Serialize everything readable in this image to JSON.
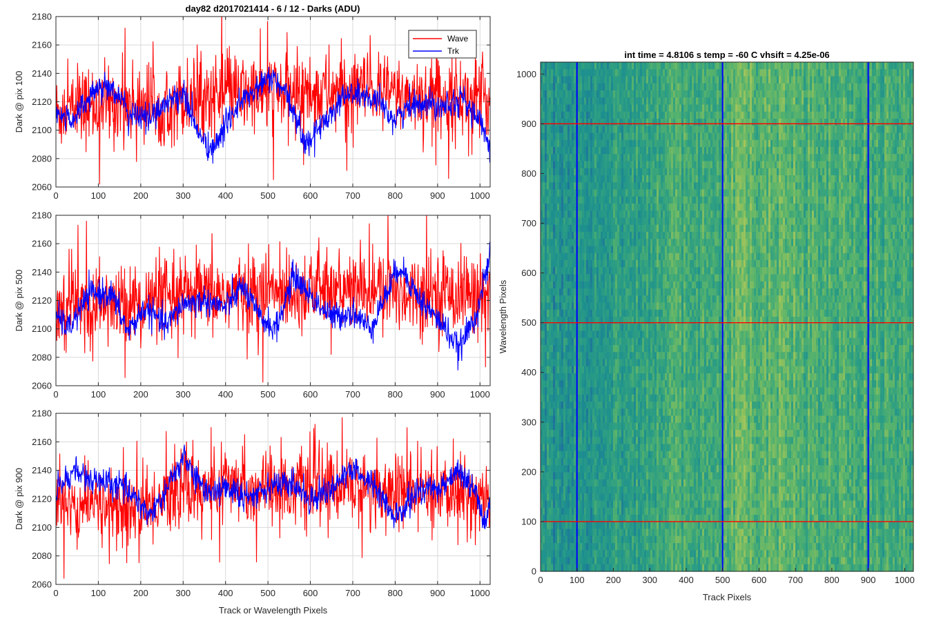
{
  "figure": {
    "title": "day82 d2017021414 - 6 / 12 - Darks (ADU)"
  },
  "colors": {
    "wave": "#ff0000",
    "trk": "#0000ff",
    "grid": "#d9d9d9",
    "axis": "#262626"
  },
  "chart_data": [
    {
      "type": "line",
      "id": "pix100",
      "title": "day82 d2017021414 - 6 / 12 - Darks (ADU)",
      "xlabel": "",
      "ylabel": "Dark @ pix 100",
      "xlim": [
        0,
        1024
      ],
      "ylim": [
        2060,
        2180
      ],
      "xticks": [
        0,
        100,
        200,
        300,
        400,
        500,
        600,
        700,
        800,
        900,
        1000
      ],
      "yticks": [
        2060,
        2080,
        2100,
        2120,
        2140,
        2160,
        2180
      ],
      "grid": true,
      "legend": {
        "position": "top-right",
        "entries": [
          "Wave",
          "Trk"
        ]
      },
      "series": [
        {
          "name": "Wave",
          "color": "#ff0000",
          "mean": 2122,
          "noise": 14,
          "spikes": 4,
          "anchors_x": [
            0,
            100,
            200,
            300,
            400,
            500,
            600,
            700,
            800,
            900,
            1024
          ],
          "anchors_y": [
            2112,
            2118,
            2120,
            2122,
            2125,
            2126,
            2126,
            2128,
            2125,
            2124,
            2122
          ]
        },
        {
          "name": "Trk",
          "color": "#0000ff",
          "noise": 5,
          "anchors_x": [
            0,
            40,
            90,
            130,
            170,
            220,
            260,
            300,
            340,
            370,
            420,
            470,
            510,
            550,
            590,
            630,
            680,
            720,
            760,
            800,
            850,
            900,
            960,
            1000,
            1024
          ],
          "anchors_y": [
            2110,
            2108,
            2128,
            2132,
            2112,
            2108,
            2120,
            2126,
            2095,
            2085,
            2115,
            2128,
            2138,
            2120,
            2090,
            2105,
            2125,
            2125,
            2118,
            2108,
            2120,
            2118,
            2122,
            2105,
            2090
          ]
        }
      ]
    },
    {
      "type": "line",
      "id": "pix500",
      "title": "",
      "xlabel": "",
      "ylabel": "Dark @ pix 500",
      "xlim": [
        0,
        1024
      ],
      "ylim": [
        2060,
        2180
      ],
      "xticks": [
        0,
        100,
        200,
        300,
        400,
        500,
        600,
        700,
        800,
        900,
        1000
      ],
      "yticks": [
        2060,
        2080,
        2100,
        2120,
        2140,
        2160,
        2180
      ],
      "grid": true,
      "series": [
        {
          "name": "Wave",
          "color": "#ff0000",
          "noise": 14,
          "spikes": 4,
          "anchors_x": [
            0,
            100,
            200,
            300,
            400,
            500,
            600,
            700,
            800,
            900,
            1024
          ],
          "anchors_y": [
            2114,
            2116,
            2118,
            2122,
            2124,
            2126,
            2128,
            2127,
            2126,
            2126,
            2124
          ]
        },
        {
          "name": "Trk",
          "color": "#0000ff",
          "noise": 5,
          "anchors_x": [
            0,
            30,
            80,
            130,
            170,
            210,
            260,
            300,
            350,
            400,
            440,
            480,
            520,
            560,
            610,
            650,
            700,
            740,
            780,
            810,
            860,
            920,
            950,
            990,
            1024
          ],
          "anchors_y": [
            2110,
            2100,
            2125,
            2125,
            2098,
            2115,
            2102,
            2118,
            2120,
            2115,
            2130,
            2108,
            2100,
            2138,
            2120,
            2108,
            2112,
            2100,
            2125,
            2145,
            2120,
            2100,
            2085,
            2110,
            2150
          ]
        }
      ]
    },
    {
      "type": "line",
      "id": "pix900",
      "title": "",
      "xlabel": "Track or Wavelength Pixels",
      "ylabel": "Dark @ pix 900",
      "xlim": [
        0,
        1024
      ],
      "ylim": [
        2060,
        2180
      ],
      "xticks": [
        0,
        100,
        200,
        300,
        400,
        500,
        600,
        700,
        800,
        900,
        1000
      ],
      "yticks": [
        2060,
        2080,
        2100,
        2120,
        2140,
        2160,
        2180
      ],
      "grid": true,
      "series": [
        {
          "name": "Wave",
          "color": "#ff0000",
          "noise": 13,
          "spikes": 4,
          "anchors_x": [
            0,
            100,
            200,
            300,
            400,
            500,
            600,
            700,
            800,
            900,
            1024
          ],
          "anchors_y": [
            2115,
            2116,
            2112,
            2126,
            2128,
            2128,
            2128,
            2130,
            2124,
            2124,
            2120
          ]
        },
        {
          "name": "Trk",
          "color": "#0000ff",
          "noise": 5,
          "anchors_x": [
            0,
            40,
            90,
            140,
            180,
            220,
            260,
            300,
            350,
            400,
            450,
            500,
            560,
            600,
            650,
            700,
            750,
            800,
            850,
            900,
            950,
            990,
            1010,
            1024
          ],
          "anchors_y": [
            2125,
            2140,
            2132,
            2130,
            2125,
            2108,
            2125,
            2150,
            2125,
            2128,
            2120,
            2130,
            2130,
            2120,
            2128,
            2140,
            2130,
            2105,
            2125,
            2128,
            2140,
            2125,
            2100,
            2120
          ]
        }
      ]
    },
    {
      "type": "heatmap",
      "id": "dark-frame",
      "title": "int time = 4.8106 s    temp = -60 C    vhsift = 4.25e-06",
      "xlabel": "Track Pixels",
      "ylabel": "Wavelength Pixels",
      "xlim": [
        0,
        1024
      ],
      "ylim": [
        0,
        1024
      ],
      "xticks": [
        0,
        100,
        200,
        300,
        400,
        500,
        600,
        700,
        800,
        900,
        1000
      ],
      "yticks": [
        0,
        100,
        200,
        300,
        400,
        500,
        600,
        700,
        800,
        900,
        1000
      ],
      "grid": false,
      "colormap": [
        "#1f6e9c",
        "#1d8f8f",
        "#2e9f82",
        "#58b36c",
        "#8fc15e",
        "#bdc95a"
      ],
      "column_bands": [
        {
          "x0": 0,
          "x1": 200,
          "level": 0.28
        },
        {
          "x0": 200,
          "x1": 300,
          "level": 0.38
        },
        {
          "x0": 300,
          "x1": 500,
          "level": 0.48
        },
        {
          "x0": 500,
          "x1": 700,
          "level": 0.62
        },
        {
          "x0": 700,
          "x1": 900,
          "level": 0.55
        },
        {
          "x0": 900,
          "x1": 1024,
          "level": 0.5
        }
      ],
      "vertical_markers": {
        "color": "#0000ff",
        "x": [
          100,
          500,
          900
        ]
      },
      "horizontal_markers": {
        "color": "#ff0000",
        "y": [
          100,
          500,
          900
        ]
      }
    }
  ]
}
